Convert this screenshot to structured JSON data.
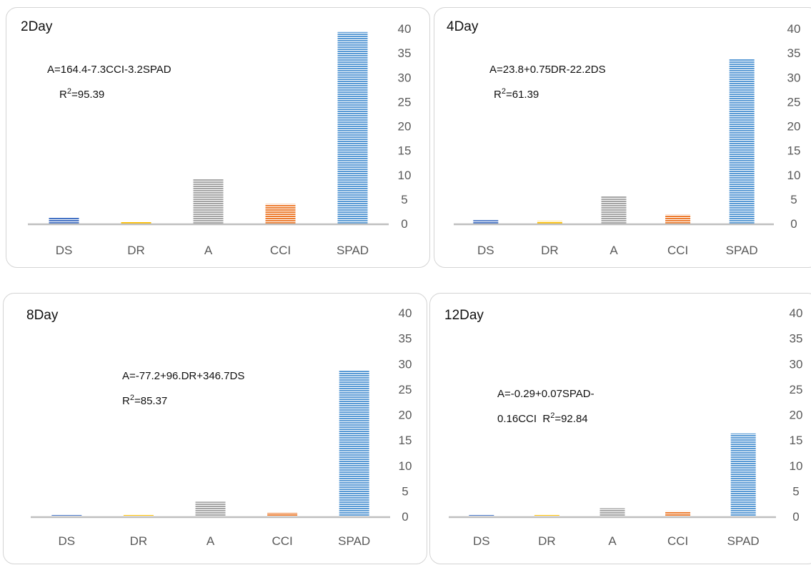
{
  "chart_data": [
    {
      "type": "bar",
      "title": "2Day",
      "categories": [
        "DS",
        "DR",
        "A",
        "CCI",
        "SPAD"
      ],
      "values": [
        1.2,
        0.3,
        9.2,
        4.0,
        39.3
      ],
      "yticks": [
        "0",
        "5",
        "10",
        "15",
        "20",
        "25",
        "30",
        "35",
        "40"
      ],
      "ylim": [
        0,
        40
      ],
      "annotation": {
        "l1": "A=164.4-7.3CCI-3.2SPAD",
        "l2_pre": "R",
        "sup": "2",
        "l2_post": "=95.39"
      }
    },
    {
      "type": "bar",
      "title": "4Day",
      "categories": [
        "DS",
        "DR",
        "A",
        "CCI",
        "SPAD"
      ],
      "values": [
        0.7,
        0.5,
        5.6,
        1.8,
        33.8
      ],
      "yticks": [
        "0",
        "5",
        "10",
        "15",
        "20",
        "25",
        "30",
        "35",
        "40"
      ],
      "ylim": [
        0,
        40
      ],
      "annotation": {
        "l1": "A=23.8+0.75DR-22.2DS",
        "l2_pre": "R",
        "sup": "2",
        "l2_post": "=61.39"
      }
    },
    {
      "type": "bar",
      "title": "8Day",
      "categories": [
        "DS",
        "DR",
        "A",
        "CCI",
        "SPAD"
      ],
      "values": [
        0.1,
        0.2,
        2.9,
        0.7,
        28.7
      ],
      "yticks": [
        "0",
        "5",
        "10",
        "15",
        "20",
        "25",
        "30",
        "35",
        "40"
      ],
      "ylim": [
        0,
        40
      ],
      "annotation": {
        "l1": "A=-77.2+96.DR+346.7DS",
        "l2_pre": "R",
        "sup": "2",
        "l2_post": "=85.37"
      }
    },
    {
      "type": "bar",
      "title": "12Day",
      "categories": [
        "DS",
        "DR",
        "A",
        "CCI",
        "SPAD"
      ],
      "values": [
        0.05,
        0.15,
        1.6,
        1.0,
        16.3
      ],
      "yticks": [
        "0",
        "5",
        "10",
        "15",
        "20",
        "25",
        "30",
        "35",
        "40"
      ],
      "ylim": [
        0,
        40
      ],
      "annotation": {
        "l1": "A=-0.29+0.07SPAD-",
        "l2_pre": "0.16CCI  R",
        "sup": "2",
        "l2_post": "=92.84"
      }
    }
  ],
  "colors": {
    "DS": "#4472c4",
    "DR": "#ffc000",
    "A": "#a5a5a5",
    "CCI": "#ed7d31",
    "SPAD": "#5b9bd5",
    "axis": "#bfbfbf",
    "text": "#595959"
  }
}
